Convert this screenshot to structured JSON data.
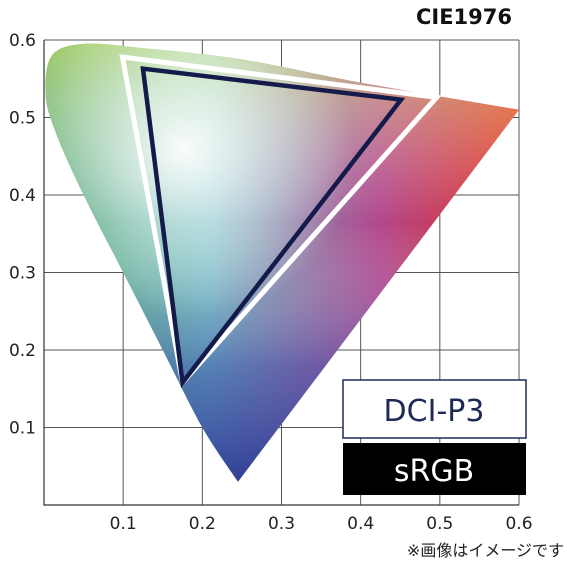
{
  "chart_data": {
    "type": "scatter",
    "title": "CIE1976",
    "xlabel": "",
    "ylabel": "",
    "xlim": [
      0,
      0.6
    ],
    "ylim": [
      0,
      0.6
    ],
    "xticks": [
      "0.1",
      "0.2",
      "0.3",
      "0.4",
      "0.5",
      "0.6"
    ],
    "yticks": [
      "0.1",
      "0.2",
      "0.3",
      "0.4",
      "0.5",
      "0.6"
    ],
    "grid": true,
    "legend_placement": "bottom-right",
    "locus": [
      [
        0.245,
        0.03
      ],
      [
        0.2,
        0.1
      ],
      [
        0.15,
        0.2
      ],
      [
        0.1,
        0.3
      ],
      [
        0.05,
        0.4
      ],
      [
        0.015,
        0.48
      ],
      [
        0.002,
        0.53
      ],
      [
        0.01,
        0.58
      ],
      [
        0.05,
        0.595
      ],
      [
        0.12,
        0.59
      ],
      [
        0.25,
        0.575
      ],
      [
        0.4,
        0.545
      ],
      [
        0.6,
        0.51
      ]
    ],
    "series": [
      {
        "name": "DCI-P3",
        "color": "#ffffff",
        "points": [
          [
            0.496,
            0.526
          ],
          [
            0.099,
            0.578
          ],
          [
            0.175,
            0.158
          ]
        ]
      },
      {
        "name": "sRGB",
        "color": "#141a4a",
        "points": [
          [
            0.451,
            0.523
          ],
          [
            0.125,
            0.563
          ],
          [
            0.175,
            0.158
          ]
        ]
      }
    ]
  },
  "annotations": {
    "note": "※画像はイメージです"
  },
  "colors": {
    "grid": "#555555",
    "dci_legend_border": "#1d2a58",
    "srgb_legend_bg": "#000000"
  }
}
